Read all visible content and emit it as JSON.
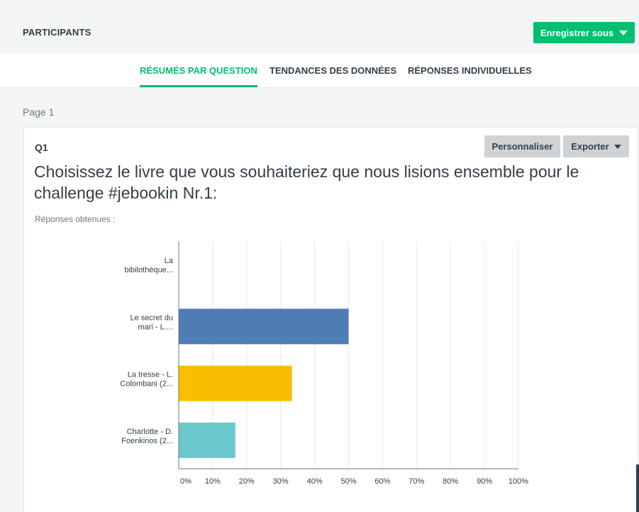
{
  "header": {
    "participants_label": "PARTICIPANTS",
    "save_label": "Enregistrer sous"
  },
  "tabs": [
    {
      "label": "RÉSUMÉS PAR QUESTION",
      "active": true
    },
    {
      "label": "TENDANCES DES DONNÉES",
      "active": false
    },
    {
      "label": "RÉPONSES INDIVIDUELLES",
      "active": false
    }
  ],
  "page_label": "Page 1",
  "question": {
    "number": "Q1",
    "customize_label": "Personnaliser",
    "export_label": "Exporter",
    "title": "Choisissez le livre que vous souhaiteriez que nous lisions ensemble pour le challenge #jebookin Nr.1:",
    "answered_label": "Réponses obtenues :"
  },
  "colors": {
    "accent": "#00bf6f",
    "bar_1": "#507cb6",
    "bar_2": "#f9be00",
    "bar_3": "#6bc8cd"
  },
  "chart_data": {
    "type": "bar",
    "orientation": "horizontal",
    "categories": [
      [
        "La",
        "bibilothèque..."
      ],
      [
        "Le secret du",
        "mari - L...."
      ],
      [
        "La tresse - L.",
        "Colombani (2..."
      ],
      [
        "Charlotte - D.",
        "Foenkinos (2..."
      ]
    ],
    "values": [
      0,
      50,
      33.33,
      16.67
    ],
    "bar_colors": [
      "#507cb6",
      "#507cb6",
      "#f9be00",
      "#6bc8cd"
    ],
    "xlim": [
      0,
      100
    ],
    "x_ticks": [
      "0%",
      "10%",
      "20%",
      "30%",
      "40%",
      "50%",
      "60%",
      "70%",
      "80%",
      "90%",
      "100%"
    ],
    "grid": true
  }
}
